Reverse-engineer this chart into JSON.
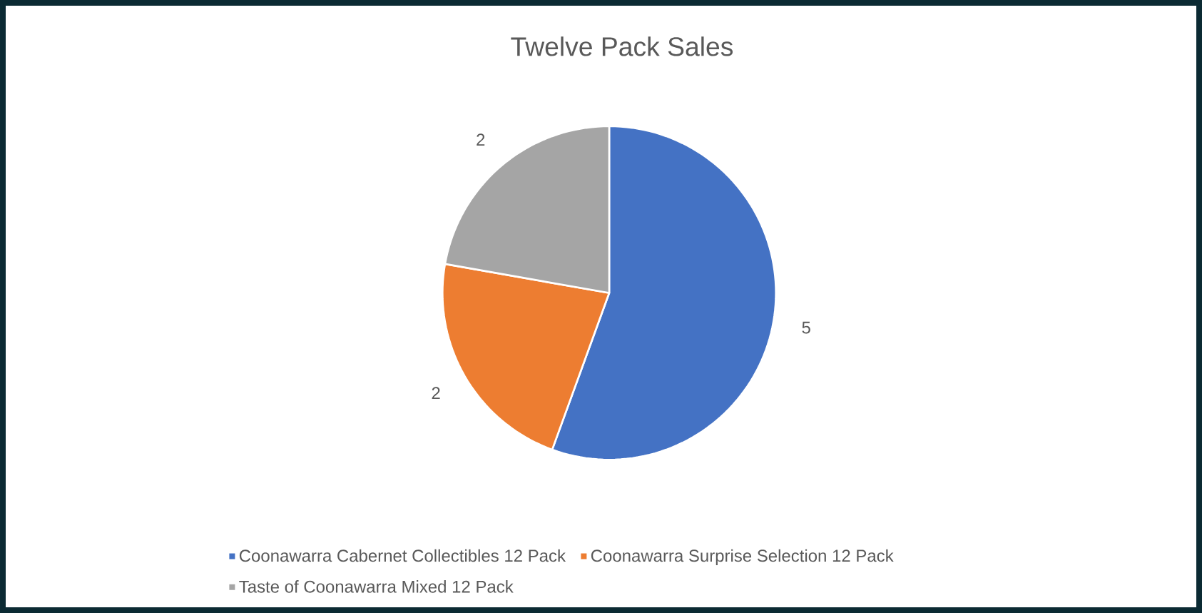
{
  "chart_data": {
    "type": "pie",
    "title": "Twelve Pack Sales",
    "categories": [
      "Coonawarra Cabernet Collectibles 12 Pack",
      "Coonawarra Surprise Selection 12 Pack",
      "Taste of Coonawarra Mixed 12 Pack"
    ],
    "values": [
      5,
      2,
      2
    ],
    "colors": [
      "#4472c4",
      "#ed7d31",
      "#a5a5a5"
    ],
    "data_labels": true,
    "legend": "bottom"
  }
}
